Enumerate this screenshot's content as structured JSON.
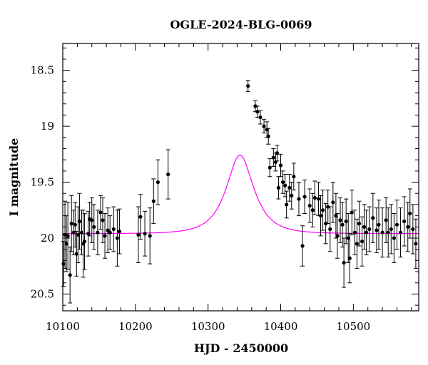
{
  "chart_data": {
    "type": "scatter",
    "title": "OGLE-2024-BLG-0069",
    "xlabel": "HJD - 2450000",
    "ylabel": "I magnitude",
    "xlim": [
      10100,
      10590
    ],
    "ylim": [
      20.65,
      18.26
    ],
    "y_inverted": true,
    "xticks": [
      10100,
      10200,
      10300,
      10400,
      10500
    ],
    "yticks": [
      18.5,
      19,
      19.5,
      20,
      20.5
    ],
    "colors": {
      "data": "#000000",
      "model": "#ff00ff",
      "frame": "#000000"
    },
    "series": [
      {
        "type": "scatter",
        "with_error_bars": true,
        "points": [
          {
            "x": 10101,
            "y": 20.23,
            "err": 0.2
          },
          {
            "x": 10103,
            "y": 19.97,
            "err": 0.3
          },
          {
            "x": 10105,
            "y": 20.05,
            "err": 0.25
          },
          {
            "x": 10107,
            "y": 19.98,
            "err": 0.3
          },
          {
            "x": 10110,
            "y": 20.33,
            "err": 0.25
          },
          {
            "x": 10112,
            "y": 19.87,
            "err": 0.25
          },
          {
            "x": 10115,
            "y": 19.95,
            "err": 0.2
          },
          {
            "x": 10117,
            "y": 19.88,
            "err": 0.2
          },
          {
            "x": 10119,
            "y": 20.14,
            "err": 0.2
          },
          {
            "x": 10121,
            "y": 19.97,
            "err": 0.25
          },
          {
            "x": 10123,
            "y": 19.85,
            "err": 0.25
          },
          {
            "x": 10126,
            "y": 19.95,
            "err": 0.2
          },
          {
            "x": 10128,
            "y": 20.05,
            "err": 0.3
          },
          {
            "x": 10130,
            "y": 20.03,
            "err": 0.25
          },
          {
            "x": 10135,
            "y": 19.96,
            "err": 0.2
          },
          {
            "x": 10137,
            "y": 19.83,
            "err": 0.15
          },
          {
            "x": 10140,
            "y": 19.84,
            "err": 0.2
          },
          {
            "x": 10143,
            "y": 19.9,
            "err": 0.2
          },
          {
            "x": 10148,
            "y": 19.95,
            "err": 0.2
          },
          {
            "x": 10152,
            "y": 19.77,
            "err": 0.15
          },
          {
            "x": 10155,
            "y": 19.84,
            "err": 0.2
          },
          {
            "x": 10158,
            "y": 19.98,
            "err": 0.2
          },
          {
            "x": 10162,
            "y": 19.93,
            "err": 0.2
          },
          {
            "x": 10165,
            "y": 19.95,
            "err": 0.15
          },
          {
            "x": 10170,
            "y": 19.92,
            "err": 0.2
          },
          {
            "x": 10175,
            "y": 20.0,
            "err": 0.25
          },
          {
            "x": 10178,
            "y": 19.94,
            "err": 0.2
          },
          {
            "x": 10204,
            "y": 19.97,
            "err": 0.25
          },
          {
            "x": 10207,
            "y": 19.81,
            "err": 0.2
          },
          {
            "x": 10213,
            "y": 19.96,
            "err": 0.2
          },
          {
            "x": 10220,
            "y": 19.98,
            "err": 0.25
          },
          {
            "x": 10225,
            "y": 19.67,
            "err": 0.2
          },
          {
            "x": 10231,
            "y": 19.5,
            "err": 0.2
          },
          {
            "x": 10245,
            "y": 19.43,
            "err": 0.22
          },
          {
            "x": 10355,
            "y": 18.64,
            "err": 0.05
          },
          {
            "x": 10365,
            "y": 18.82,
            "err": 0.05
          },
          {
            "x": 10368,
            "y": 18.87,
            "err": 0.05
          },
          {
            "x": 10372,
            "y": 18.92,
            "err": 0.06
          },
          {
            "x": 10377,
            "y": 19.0,
            "err": 0.06
          },
          {
            "x": 10381,
            "y": 19.03,
            "err": 0.07
          },
          {
            "x": 10383,
            "y": 19.09,
            "err": 0.07
          },
          {
            "x": 10385,
            "y": 19.37,
            "err": 0.08
          },
          {
            "x": 10390,
            "y": 19.28,
            "err": 0.08
          },
          {
            "x": 10393,
            "y": 19.32,
            "err": 0.08
          },
          {
            "x": 10395,
            "y": 19.24,
            "err": 0.07
          },
          {
            "x": 10397,
            "y": 19.55,
            "err": 0.1
          },
          {
            "x": 10400,
            "y": 19.35,
            "err": 0.1
          },
          {
            "x": 10403,
            "y": 19.5,
            "err": 0.1
          },
          {
            "x": 10406,
            "y": 19.53,
            "err": 0.1
          },
          {
            "x": 10408,
            "y": 19.7,
            "err": 0.12
          },
          {
            "x": 10412,
            "y": 19.55,
            "err": 0.12
          },
          {
            "x": 10415,
            "y": 19.62,
            "err": 0.12
          },
          {
            "x": 10418,
            "y": 19.45,
            "err": 0.12
          },
          {
            "x": 10425,
            "y": 19.65,
            "err": 0.15
          },
          {
            "x": 10430,
            "y": 20.07,
            "err": 0.18
          },
          {
            "x": 10433,
            "y": 19.63,
            "err": 0.15
          },
          {
            "x": 10440,
            "y": 19.71,
            "err": 0.15
          },
          {
            "x": 10444,
            "y": 19.75,
            "err": 0.15
          },
          {
            "x": 10447,
            "y": 19.64,
            "err": 0.15
          },
          {
            "x": 10452,
            "y": 19.65,
            "err": 0.15
          },
          {
            "x": 10455,
            "y": 19.8,
            "err": 0.18
          },
          {
            "x": 10458,
            "y": 19.75,
            "err": 0.18
          },
          {
            "x": 10462,
            "y": 19.87,
            "err": 0.18
          },
          {
            "x": 10465,
            "y": 19.72,
            "err": 0.15
          },
          {
            "x": 10468,
            "y": 19.92,
            "err": 0.2
          },
          {
            "x": 10472,
            "y": 19.68,
            "err": 0.18
          },
          {
            "x": 10476,
            "y": 19.8,
            "err": 0.2
          },
          {
            "x": 10478,
            "y": 19.98,
            "err": 0.2
          },
          {
            "x": 10482,
            "y": 19.84,
            "err": 0.2
          },
          {
            "x": 10485,
            "y": 19.88,
            "err": 0.2
          },
          {
            "x": 10487,
            "y": 20.22,
            "err": 0.22
          },
          {
            "x": 10490,
            "y": 19.85,
            "err": 0.2
          },
          {
            "x": 10493,
            "y": 20.0,
            "err": 0.22
          },
          {
            "x": 10495,
            "y": 20.18,
            "err": 0.22
          },
          {
            "x": 10498,
            "y": 19.77,
            "err": 0.2
          },
          {
            "x": 10502,
            "y": 19.95,
            "err": 0.2
          },
          {
            "x": 10505,
            "y": 20.05,
            "err": 0.22
          },
          {
            "x": 10508,
            "y": 19.87,
            "err": 0.2
          },
          {
            "x": 10512,
            "y": 20.03,
            "err": 0.22
          },
          {
            "x": 10515,
            "y": 19.9,
            "err": 0.2
          },
          {
            "x": 10518,
            "y": 19.95,
            "err": 0.2
          },
          {
            "x": 10522,
            "y": 19.92,
            "err": 0.2
          },
          {
            "x": 10527,
            "y": 19.82,
            "err": 0.22
          },
          {
            "x": 10532,
            "y": 19.93,
            "err": 0.2
          },
          {
            "x": 10535,
            "y": 19.88,
            "err": 0.22
          },
          {
            "x": 10540,
            "y": 19.95,
            "err": 0.22
          },
          {
            "x": 10545,
            "y": 19.84,
            "err": 0.2
          },
          {
            "x": 10548,
            "y": 19.95,
            "err": 0.22
          },
          {
            "x": 10552,
            "y": 19.92,
            "err": 0.22
          },
          {
            "x": 10556,
            "y": 20.0,
            "err": 0.22
          },
          {
            "x": 10560,
            "y": 19.88,
            "err": 0.22
          },
          {
            "x": 10565,
            "y": 19.95,
            "err": 0.22
          },
          {
            "x": 10570,
            "y": 19.85,
            "err": 0.22
          },
          {
            "x": 10575,
            "y": 19.9,
            "err": 0.22
          },
          {
            "x": 10578,
            "y": 19.78,
            "err": 0.22
          },
          {
            "x": 10582,
            "y": 19.92,
            "err": 0.22
          },
          {
            "x": 10586,
            "y": 20.05,
            "err": 0.22
          }
        ]
      },
      {
        "type": "line",
        "curve": "point-lens model",
        "model": {
          "t0": 10344,
          "tE": 31,
          "u0": 0.56,
          "baseline": 19.96,
          "blend_fraction": 0.92
        }
      }
    ],
    "grid": false
  }
}
